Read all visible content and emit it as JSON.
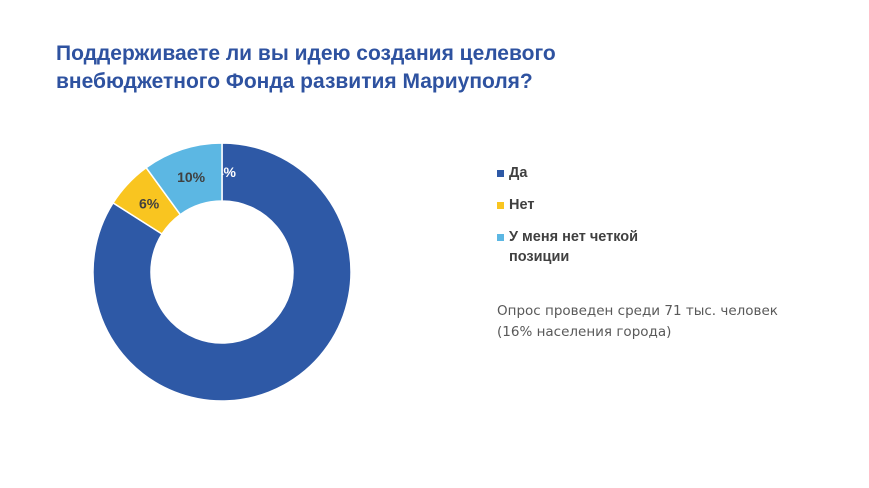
{
  "title_lines": [
    "Поддерживаете ли вы идею создания целевого",
    "внебюджетного Фонда развития Мариуполя?"
  ],
  "note_lines": [
    "Опрос проведен среди 71 тыс. человек",
    "(16% населения города)"
  ],
  "colors": {
    "title": "#2E52A0",
    "yes": "#2E59A6",
    "no": "#F9C520",
    "unsure": "#5CB7E3"
  },
  "chart_data": {
    "type": "pie",
    "donut": true,
    "categories": [
      "Да",
      "Нет",
      "У меня нет четкой позиции"
    ],
    "values": [
      84,
      6,
      10
    ],
    "data_labels": [
      "84%",
      "6%",
      "10%"
    ],
    "colors": [
      "#2E59A6",
      "#F9C520",
      "#5CB7E3"
    ],
    "title": "Поддерживаете ли вы идею создания целевого внебюджетного Фонда развития Мариуполя?",
    "legend_position": "right",
    "legend": [
      {
        "label_lines": [
          "Да"
        ],
        "color": "#2E59A6"
      },
      {
        "label_lines": [
          "Нет"
        ],
        "color": "#F9C520"
      },
      {
        "label_lines": [
          "У меня нет четкой",
          "позиции"
        ],
        "color": "#5CB7E3"
      }
    ]
  }
}
